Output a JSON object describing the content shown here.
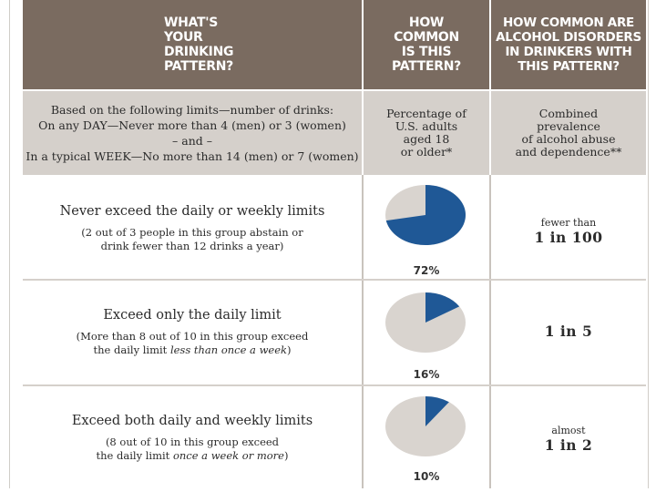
{
  "header": {
    "col1": "WHAT'S\nYOUR\nDRINKING\nPATTERN?",
    "col2": "HOW\nCOMMON\nIS THIS\nPATTERN?",
    "col3": "HOW COMMON ARE\nALCOHOL DISORDERS\nIN DRINKERS WITH\nTHIS PATTERN?"
  },
  "subheader": {
    "col1": [
      "Based on the following limits—number of drinks:",
      "On any DAY—Never more than 4 (men) or 3 (women)",
      "– and –",
      "In a typical WEEK—No more than 14 (men) or 7 (women)"
    ],
    "col2": [
      "Percentage of",
      "U.S. adults",
      "aged 18",
      "or older*"
    ],
    "col3": [
      "Combined",
      "prevalence",
      "of alcohol abuse",
      "and dependence**"
    ]
  },
  "colors": {
    "header_bg": "#7a6b60",
    "subheader_bg": "#d5d0cb",
    "pie_blue": "#1f5896",
    "pie_gray": "#d9d4cf"
  },
  "rows": [
    {
      "title": "Never exceed the daily or weekly limits",
      "note_line1": "(2 out of 3 people in this group abstain or",
      "note_line2": "drink fewer than 12 drinks a year)",
      "note_italic": "",
      "note_tail": "",
      "percent_label": "72%",
      "percent_value": 72,
      "prevalence_small": "fewer than",
      "prevalence_big": "1 in 100"
    },
    {
      "title": "Exceed only the daily limit",
      "note_line1": "(More than 8 out of 10 in this group exceed",
      "note_line2": "the daily limit ",
      "note_italic": "less than once a week",
      "note_tail": ")",
      "percent_label": "16%",
      "percent_value": 16,
      "prevalence_small": "",
      "prevalence_big": "1 in 5"
    },
    {
      "title": "Exceed both daily and weekly limits",
      "note_line1": "(8 out of 10 in this group exceed",
      "note_line2": "the daily limit ",
      "note_italic": "once a week or more",
      "note_tail": ")",
      "percent_label": "10%",
      "percent_value": 10,
      "prevalence_small": "almost",
      "prevalence_big": "1 in 2"
    }
  ]
}
